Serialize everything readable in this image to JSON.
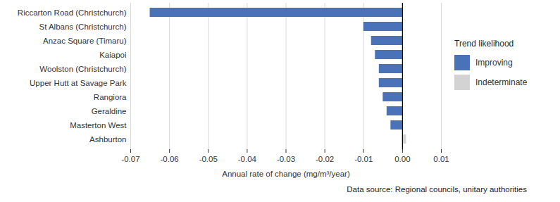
{
  "chart_data": {
    "type": "bar",
    "orientation": "horizontal",
    "categories": [
      "Riccarton Road (Christchurch)",
      "St Albans (Christchurch)",
      "Anzac Square (Timaru)",
      "Kaiapoi",
      "Woolston (Christchurch)",
      "Upper Hutt at Savage Park",
      "Rangiora",
      "Geraldine",
      "Masterton West",
      "Ashburton"
    ],
    "series": [
      {
        "name": "Improving",
        "color": "#4a72b8",
        "values": [
          -0.065,
          -0.01,
          -0.008,
          -0.007,
          -0.006,
          -0.006,
          -0.005,
          -0.004,
          -0.003,
          null
        ]
      },
      {
        "name": "Indeterminate",
        "color": "#d3d3d3",
        "values": [
          null,
          null,
          null,
          null,
          null,
          null,
          null,
          null,
          null,
          0.001
        ]
      }
    ],
    "legend_title": "Trend likelihood",
    "legend": "right",
    "x_label": "Annual rate of change (mg/m³/year)",
    "caption": "Data source: Regional councils, unitary authorities",
    "xlim": [
      -0.07,
      0.01
    ],
    "xticks": [
      -0.07,
      -0.06,
      -0.05,
      -0.04,
      -0.03,
      -0.02,
      -0.01,
      {
        "value": 0,
        "label": "0.00"
      },
      0.01
    ],
    "grid": true
  }
}
